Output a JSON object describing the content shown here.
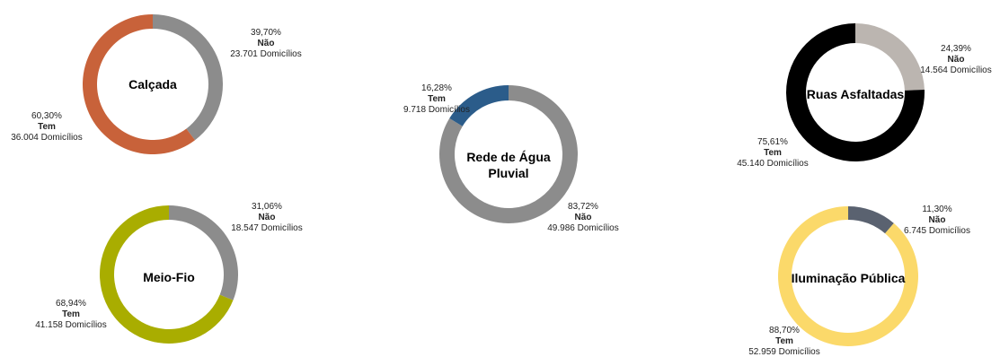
{
  "chart_data": [
    {
      "type": "pie",
      "title": "Calçada",
      "series": [
        {
          "name": "Não",
          "percent": "39,70%",
          "value": 39.7,
          "count": "23.701 Domicílios",
          "color": "#8c8c8c"
        },
        {
          "name": "Tem",
          "percent": "60,30%",
          "value": 60.3,
          "count": "36.004 Domicílios",
          "color": "#c8623a"
        }
      ]
    },
    {
      "type": "pie",
      "title": "Meio-Fio",
      "series": [
        {
          "name": "Não",
          "percent": "31,06%",
          "value": 31.06,
          "count": "18.547 Domicílios",
          "color": "#8c8c8c"
        },
        {
          "name": "Tem",
          "percent": "68,94%",
          "value": 68.94,
          "count": "41.158 Domicílios",
          "color": "#a9ad00"
        }
      ]
    },
    {
      "type": "pie",
      "title": "Rede de Água Pluvial",
      "series": [
        {
          "name": "Não",
          "percent": "83,72%",
          "value": 83.72,
          "count": "49.986 Domicílios",
          "color": "#8c8c8c"
        },
        {
          "name": "Tem",
          "percent": "16,28%",
          "value": 16.28,
          "count": "9.718 Domicílios",
          "color": "#2b5c8a"
        }
      ]
    },
    {
      "type": "pie",
      "title": "Ruas Asfaltadas",
      "series": [
        {
          "name": "Não",
          "percent": "24,39%",
          "value": 24.39,
          "count": "14.564 Domicílios",
          "color": "#bbb5b0"
        },
        {
          "name": "Tem",
          "percent": "75,61%",
          "value": 75.61,
          "count": "45.140 Domicílios",
          "color": "#000000"
        }
      ]
    },
    {
      "type": "pie",
      "title": "Iluminação Pública",
      "series": [
        {
          "name": "Não",
          "percent": "11,30%",
          "value": 11.3,
          "count": "6.745 Domicílios",
          "color": "#5a6270"
        },
        {
          "name": "Tem",
          "percent": "88,70%",
          "value": 88.7,
          "count": "52.959 Domicílios",
          "color": "#fbd96a"
        }
      ]
    }
  ]
}
